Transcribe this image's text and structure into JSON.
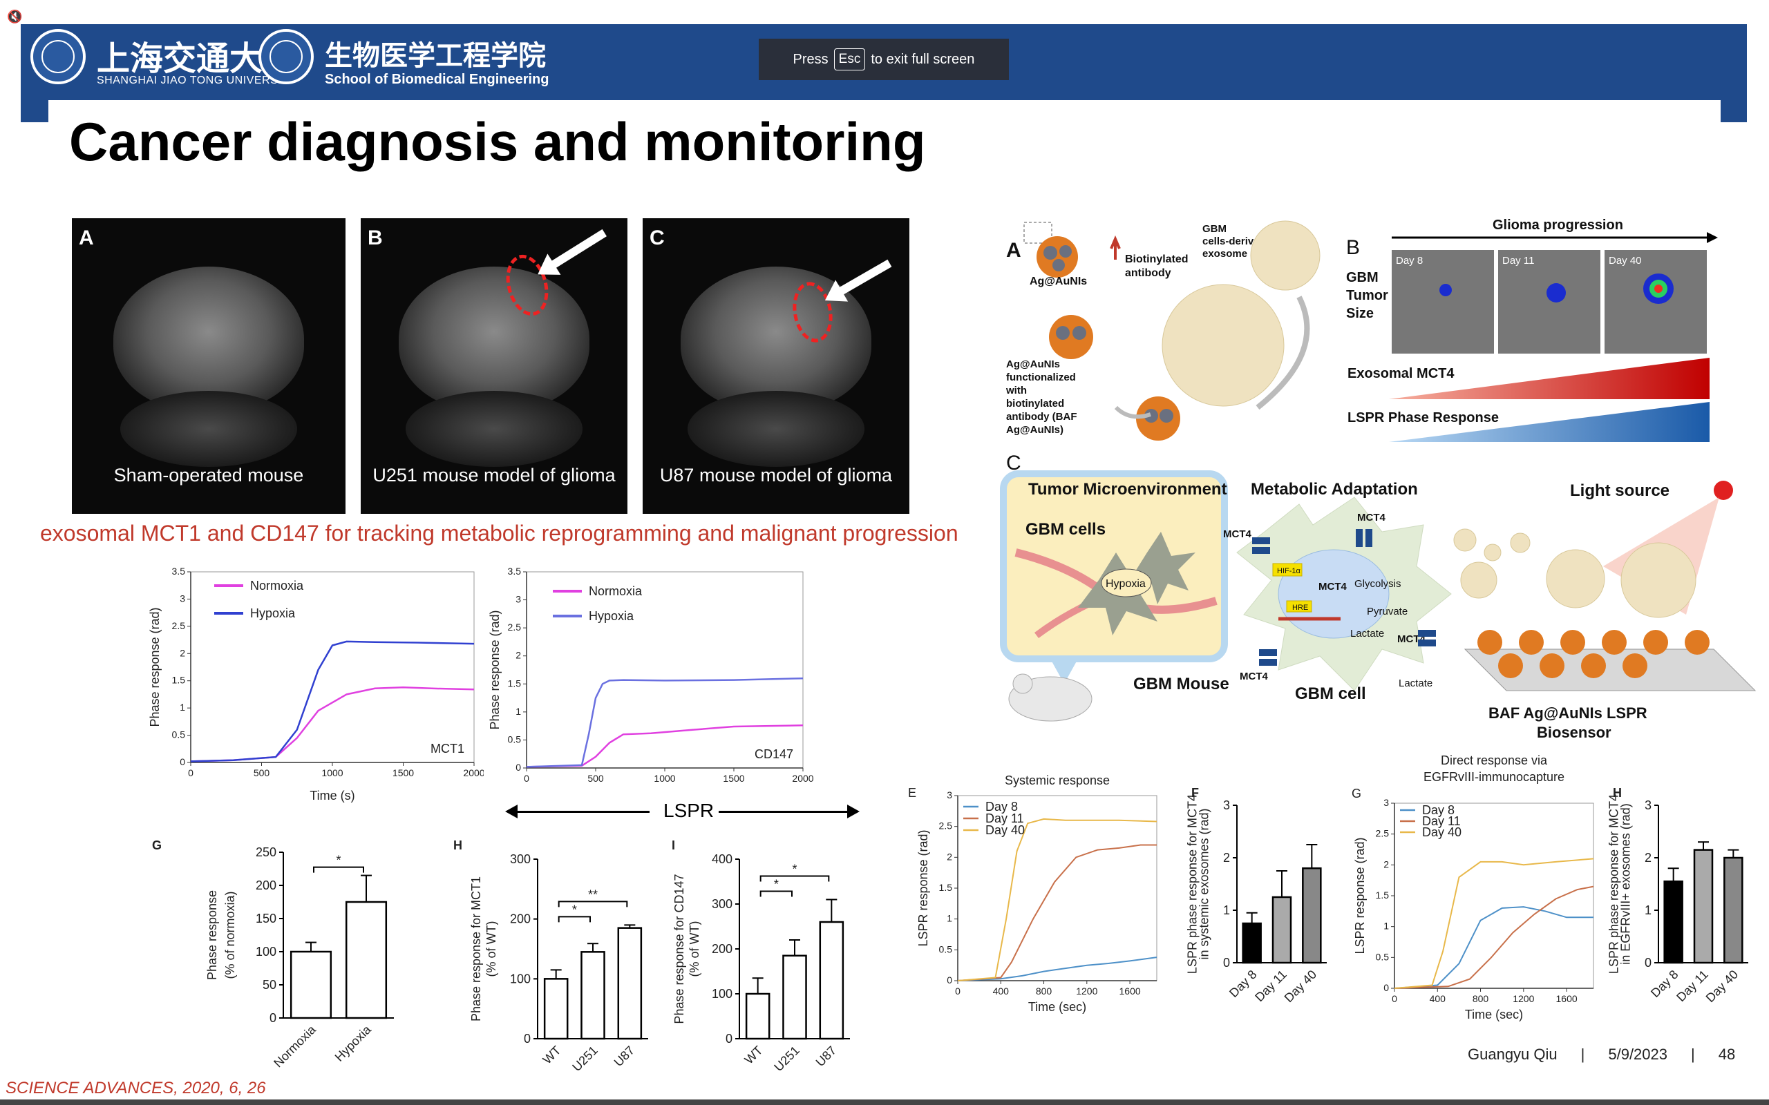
{
  "header": {
    "logo_cn_1": "上海交通大學",
    "logo_en_1": "SHANGHAI JIAO TONG UNIVERSITY",
    "logo_cn_2": "生物医学工程学院",
    "logo_en_2": "School of Biomedical Engineering",
    "fullscreen_toast": {
      "press": "Press",
      "key": "Esc",
      "rest": "to exit full screen"
    }
  },
  "slide": {
    "title": "Cancer diagnosis and monitoring",
    "red_caption": "exosomal MCT1 and CD147 for tracking metabolic reprogramming and malignant progression",
    "mri_panels": [
      {
        "letter": "A",
        "caption": "Sham-operated mouse"
      },
      {
        "letter": "B",
        "caption": "U251 mouse model of glioma"
      },
      {
        "letter": "C",
        "caption": "U87 mouse model of glioma"
      }
    ],
    "lspr_label": "LSPR",
    "reference": "SCIENCE ADVANCES, 2020, 6, 26",
    "footer": {
      "author": "Guangyu Qiu",
      "sep": "|",
      "date": "5/9/2023",
      "page": "48"
    }
  },
  "diagram": {
    "A_letter": "A",
    "B_letter": "B",
    "C_letter": "C",
    "A_labels": {
      "particle": "Ag@AuNIs",
      "antibody": "Biotinylated antibody",
      "exosome": "GBM cells-derived exosome",
      "functionalized": "Ag@AuNIs functionalized with biotinylated antibody (BAF Ag@AuNIs)"
    },
    "B_labels": {
      "progression": "Glioma progression",
      "tumor_size": "GBM Tumor Size",
      "day8": "Day 8",
      "day11": "Day 11",
      "day40": "Day 40",
      "mct4": "Exosomal MCT4",
      "phase": "LSPR Phase Response"
    },
    "C_labels": {
      "tme": "Tumor Microenvironment",
      "gbm_cells": "GBM cells",
      "hypoxia": "Hypoxia",
      "gbm_mouse": "GBM Mouse",
      "metabolic": "Metabolic Adaptation",
      "mct4": "MCT4",
      "hif": "HIF-1α",
      "hre": "HRE",
      "glycolysis": "Glycolysis",
      "pyruvate": "Pyruvate",
      "lactate": "Lactate",
      "gbm_cell": "GBM cell",
      "light": "Light source",
      "biosensor": "BAF Ag@AuNIs LSPR Biosensor"
    }
  },
  "chart_data": [
    {
      "type": "line",
      "name": "MCT1",
      "xlabel": "Time (s)",
      "ylabel": "Phase response (rad)",
      "xlim": [
        0,
        2000
      ],
      "ylim": [
        0,
        3.5
      ],
      "xticks": [
        0,
        500,
        1000,
        1500,
        2000
      ],
      "yticks": [
        0,
        0.5,
        1,
        1.5,
        2,
        2.5,
        3,
        3.5
      ],
      "annotation": "MCT1",
      "series": [
        {
          "name": "Normoxia",
          "color": "#e040e0",
          "x": [
            0,
            300,
            600,
            750,
            900,
            1100,
            1300,
            1500,
            1700,
            2000
          ],
          "y": [
            0.02,
            0.04,
            0.1,
            0.45,
            0.95,
            1.25,
            1.36,
            1.38,
            1.36,
            1.34
          ]
        },
        {
          "name": "Hypoxia",
          "color": "#3040d0",
          "x": [
            0,
            300,
            600,
            750,
            900,
            1000,
            1100,
            1300,
            1600,
            2000
          ],
          "y": [
            0.02,
            0.04,
            0.1,
            0.6,
            1.7,
            2.15,
            2.22,
            2.21,
            2.2,
            2.18
          ]
        }
      ]
    },
    {
      "type": "line",
      "name": "CD147",
      "xlabel": "",
      "ylabel": "Phase response (rad)",
      "xlim": [
        0,
        2000
      ],
      "ylim": [
        0,
        3.5
      ],
      "xticks": [
        0,
        500,
        1000,
        1500,
        2000
      ],
      "yticks": [
        0,
        0.5,
        1,
        1.5,
        2,
        2.5,
        3,
        3.5
      ],
      "annotation": "CD147",
      "series": [
        {
          "name": "Normoxia",
          "color": "#e040e0",
          "x": [
            0,
            400,
            500,
            600,
            700,
            900,
            1200,
            1500,
            2000
          ],
          "y": [
            0.02,
            0.04,
            0.2,
            0.45,
            0.6,
            0.62,
            0.68,
            0.74,
            0.76
          ]
        },
        {
          "name": "Hypoxia",
          "color": "#6a70e0",
          "x": [
            0,
            400,
            450,
            500,
            550,
            600,
            700,
            1000,
            1500,
            2000
          ],
          "y": [
            0.02,
            0.05,
            0.6,
            1.25,
            1.5,
            1.56,
            1.57,
            1.56,
            1.57,
            1.6
          ]
        }
      ]
    },
    {
      "type": "bar",
      "name": "G",
      "letter": "G",
      "ylabel": "Phase response (% of normoxia)",
      "ylim": [
        0,
        250
      ],
      "yticks": [
        0,
        50,
        100,
        150,
        200,
        250
      ],
      "categories": [
        "Normoxia",
        "Hypoxia"
      ],
      "values": [
        100,
        175
      ],
      "errors": [
        14,
        40
      ],
      "significance": [
        {
          "from": 0,
          "to": 1,
          "label": "*"
        }
      ]
    },
    {
      "type": "bar",
      "name": "H",
      "letter": "H",
      "ylabel": "Phase response for MCT1 (% of WT)",
      "ylim": [
        0,
        300
      ],
      "yticks": [
        0,
        100,
        200,
        300
      ],
      "categories": [
        "WT",
        "U251",
        "U87"
      ],
      "values": [
        100,
        145,
        185
      ],
      "errors": [
        15,
        14,
        5
      ],
      "significance": [
        {
          "from": 0,
          "to": 1,
          "label": "*"
        },
        {
          "from": 0,
          "to": 2,
          "label": "**"
        }
      ]
    },
    {
      "type": "bar",
      "name": "I",
      "letter": "I",
      "ylabel": "Phase response for CD147 (% of WT)",
      "ylim": [
        0,
        400
      ],
      "yticks": [
        0,
        100,
        200,
        300,
        400
      ],
      "categories": [
        "WT",
        "U251",
        "U87"
      ],
      "values": [
        100,
        185,
        260
      ],
      "errors": [
        35,
        35,
        50
      ],
      "significance": [
        {
          "from": 0,
          "to": 1,
          "label": "*"
        },
        {
          "from": 0,
          "to": 2,
          "label": "*"
        }
      ]
    },
    {
      "type": "line",
      "name": "E",
      "letter": "E",
      "title": "Systemic response",
      "xlabel": "Time (sec)",
      "ylabel": "LSPR response (rad)",
      "xlim": [
        0,
        1850
      ],
      "ylim": [
        0,
        3
      ],
      "xticks": [
        0,
        400,
        800,
        1200,
        1600
      ],
      "yticks": [
        0,
        0.5,
        1,
        1.5,
        2,
        2.5,
        3
      ],
      "series": [
        {
          "name": "Day 8",
          "color": "#4d90c8",
          "x": [
            0,
            400,
            600,
            800,
            1000,
            1200,
            1400,
            1600,
            1850
          ],
          "y": [
            0,
            0.03,
            0.08,
            0.15,
            0.2,
            0.25,
            0.28,
            0.32,
            0.38
          ]
        },
        {
          "name": "Day 11",
          "color": "#c8704a",
          "x": [
            0,
            400,
            500,
            700,
            900,
            1100,
            1300,
            1500,
            1700,
            1850
          ],
          "y": [
            0,
            0.05,
            0.3,
            1.0,
            1.6,
            2.0,
            2.12,
            2.15,
            2.2,
            2.2
          ]
        },
        {
          "name": "Day 40",
          "color": "#e8b84a",
          "x": [
            0,
            350,
            450,
            550,
            650,
            800,
            1000,
            1200,
            1500,
            1850
          ],
          "y": [
            0,
            0.05,
            1.0,
            2.1,
            2.55,
            2.62,
            2.6,
            2.6,
            2.6,
            2.58
          ]
        }
      ]
    },
    {
      "type": "bar",
      "name": "F",
      "letter": "F",
      "ylabel": "LSPR phase response for MCT4 in systemic exosomes (rad)",
      "ylim": [
        0,
        3
      ],
      "yticks": [
        0,
        1,
        2,
        3
      ],
      "categories": [
        "Day 8",
        "Day 11",
        "Day 40"
      ],
      "values": [
        0.75,
        1.25,
        1.8
      ],
      "errors": [
        0.2,
        0.5,
        0.45
      ],
      "colors": [
        "#000000",
        "#aaaaaa",
        "#888888"
      ]
    },
    {
      "type": "line",
      "name": "G2",
      "letter": "G",
      "title": "Direct response via EGFRvIII-immunocapture",
      "xlabel": "Time (sec)",
      "ylabel": "LSPR response (rad)",
      "xlim": [
        0,
        1850
      ],
      "ylim": [
        0,
        3
      ],
      "xticks": [
        0,
        400,
        800,
        1200,
        1600
      ],
      "yticks": [
        0,
        0.5,
        1,
        1.5,
        2,
        2.5,
        3
      ],
      "series": [
        {
          "name": "Day 8",
          "color": "#4d90c8",
          "x": [
            0,
            400,
            600,
            800,
            1000,
            1200,
            1400,
            1600,
            1850
          ],
          "y": [
            0,
            0.05,
            0.4,
            1.1,
            1.3,
            1.32,
            1.25,
            1.15,
            1.15
          ]
        },
        {
          "name": "Day 11",
          "color": "#c8704a",
          "x": [
            0,
            500,
            700,
            900,
            1100,
            1300,
            1500,
            1700,
            1850
          ],
          "y": [
            0,
            0.03,
            0.15,
            0.5,
            0.9,
            1.2,
            1.45,
            1.6,
            1.65
          ]
        },
        {
          "name": "Day 40",
          "color": "#e8b84a",
          "x": [
            0,
            350,
            450,
            600,
            800,
            1000,
            1200,
            1500,
            1850
          ],
          "y": [
            0,
            0.05,
            0.6,
            1.8,
            2.05,
            2.05,
            2.0,
            2.05,
            2.1
          ]
        }
      ]
    },
    {
      "type": "bar",
      "name": "H2",
      "letter": "H",
      "ylabel": "LSPR phase response for MCT4 in EGFRvIII+ exosomes (rad)",
      "ylim": [
        0,
        3
      ],
      "yticks": [
        0,
        1,
        2,
        3
      ],
      "categories": [
        "Day 8",
        "Day 11",
        "Day 40"
      ],
      "values": [
        1.55,
        2.15,
        2.0
      ],
      "errors": [
        0.25,
        0.15,
        0.15
      ],
      "colors": [
        "#000000",
        "#aaaaaa",
        "#888888"
      ]
    }
  ]
}
